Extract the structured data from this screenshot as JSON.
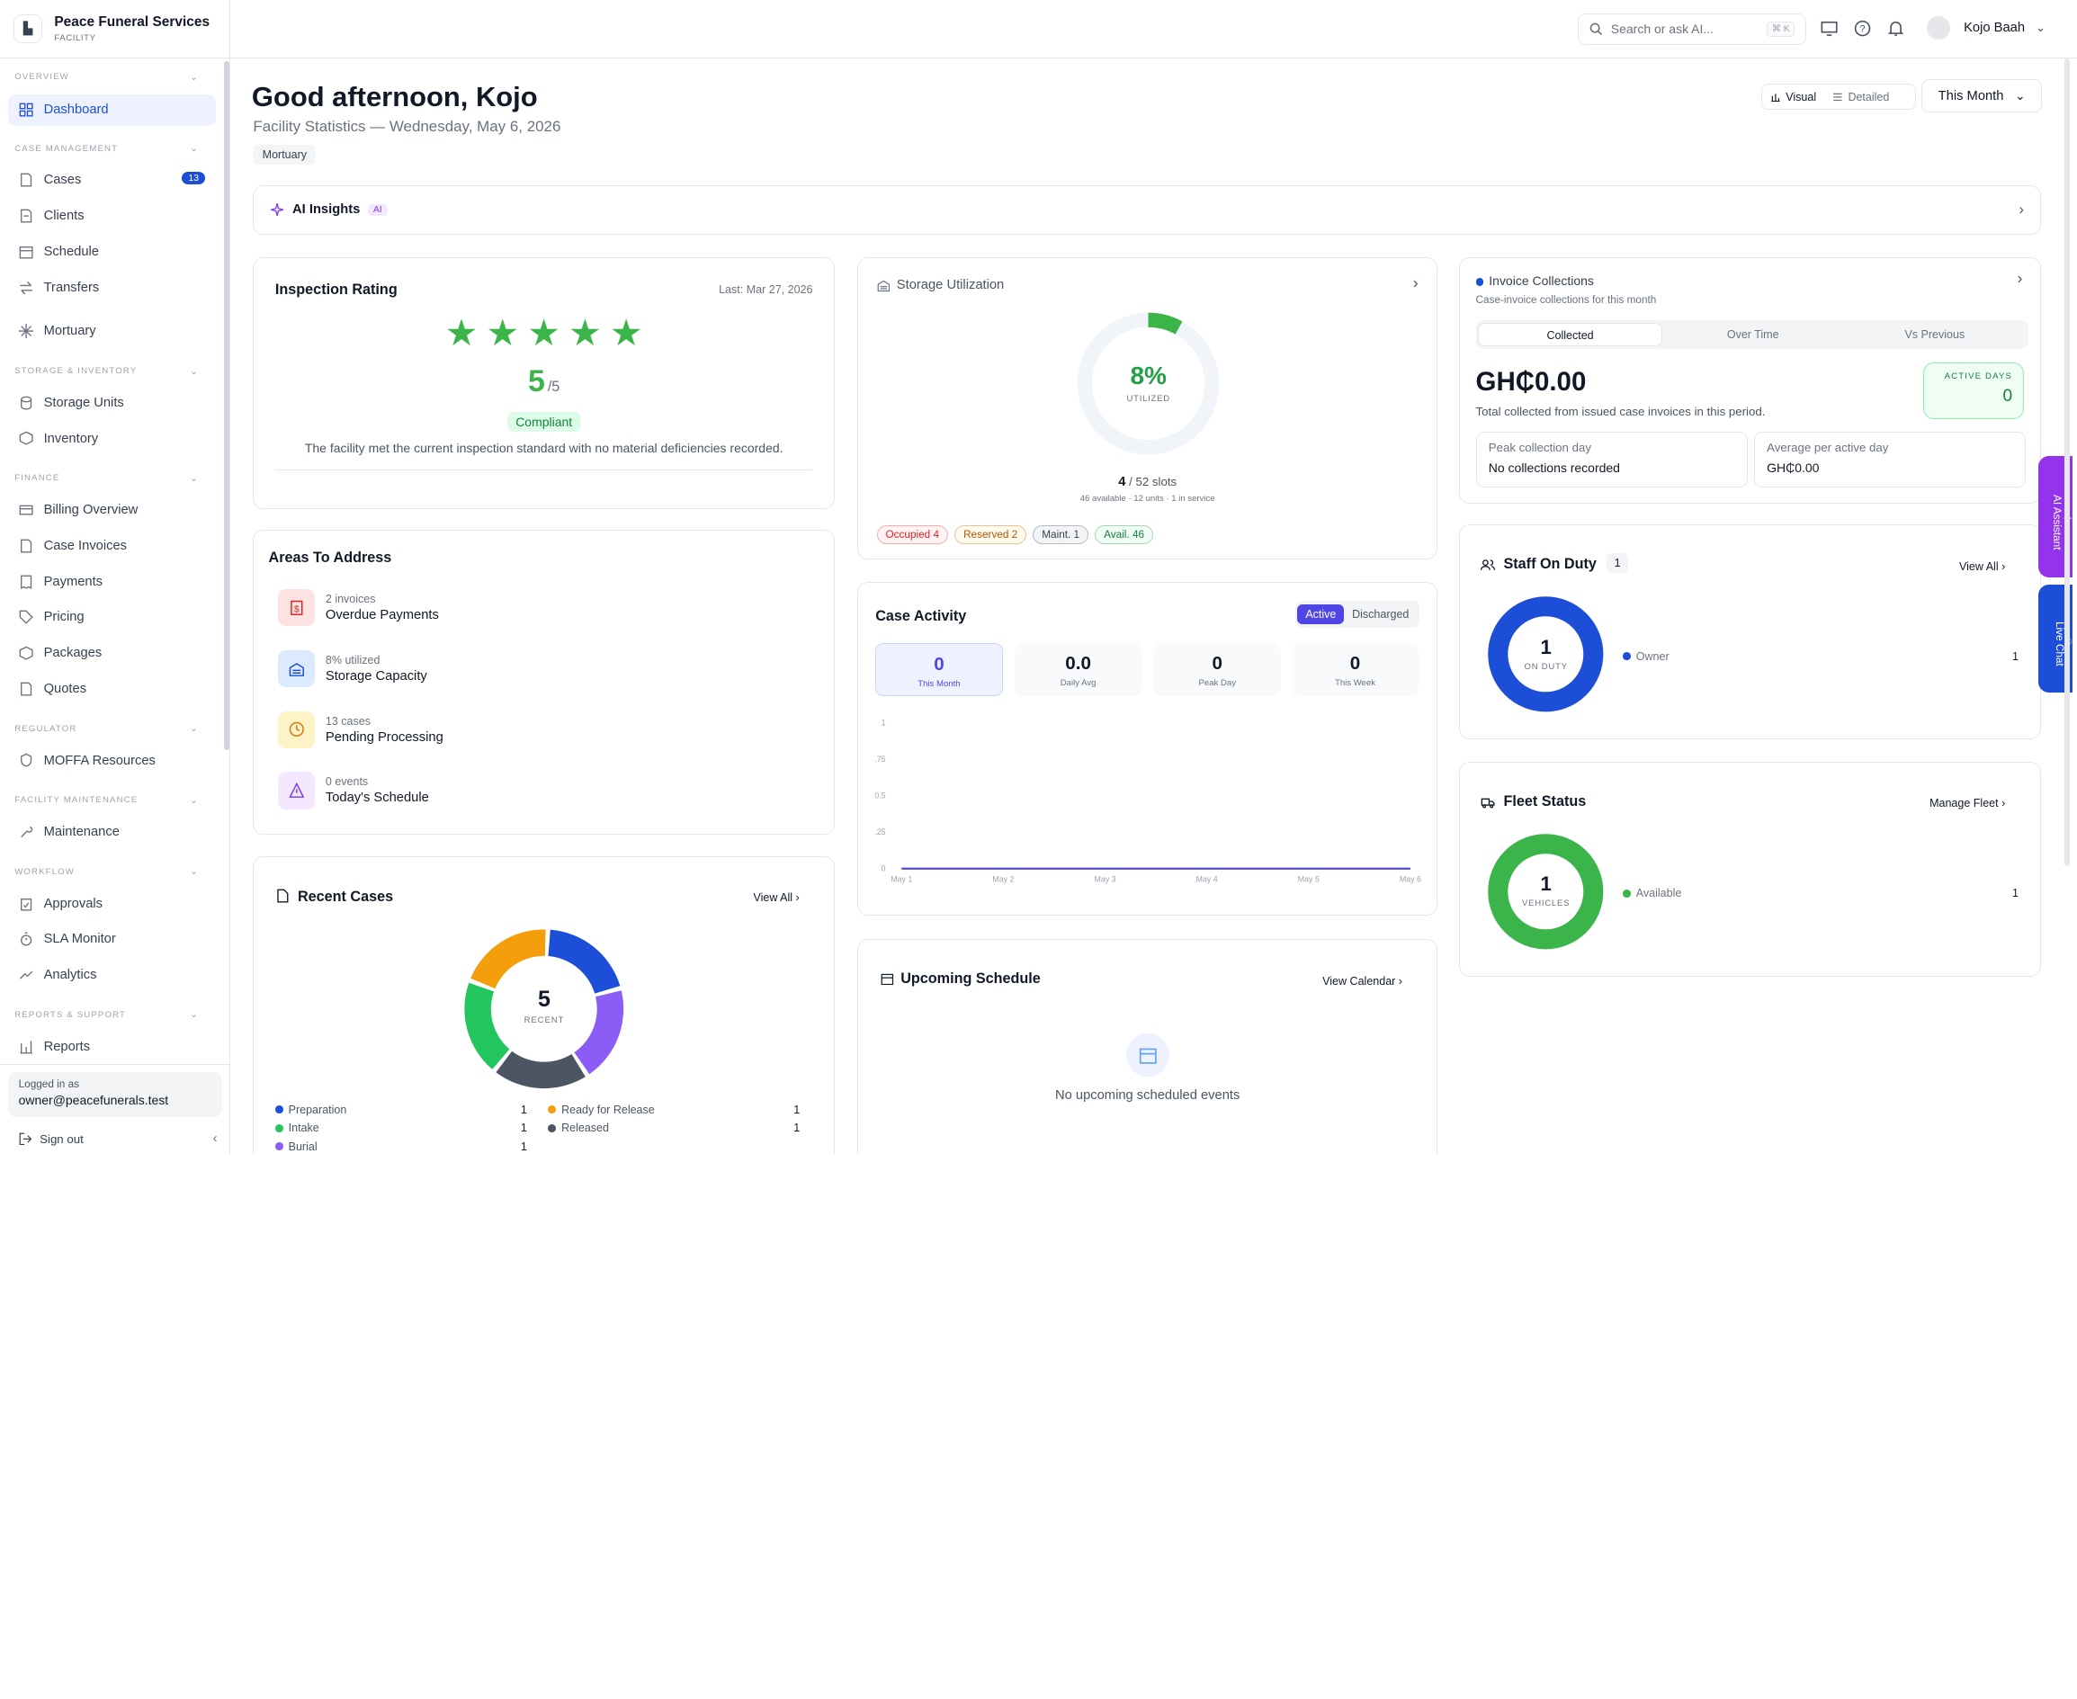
{
  "brand": {
    "name": "Peace Funeral Services",
    "sub": "FACILITY"
  },
  "nav": {
    "overview": "OVERVIEW",
    "dashboard": "Dashboard",
    "case_mgmt": "CASE MANAGEMENT",
    "cases": "Cases",
    "cases_badge": "13",
    "clients": "Clients",
    "schedule": "Schedule",
    "transfers": "Transfers",
    "mortuary": "Mortuary",
    "storage_inv": "STORAGE & INVENTORY",
    "storage_units": "Storage Units",
    "inventory": "Inventory",
    "finance": "FINANCE",
    "billing": "Billing Overview",
    "case_invoices": "Case Invoices",
    "payments": "Payments",
    "pricing": "Pricing",
    "packages": "Packages",
    "quotes": "Quotes",
    "regulator": "REGULATOR",
    "moffa": "MOFFA Resources",
    "facility_maint": "FACILITY MAINTENANCE",
    "maintenance": "Maintenance",
    "workflow": "WORKFLOW",
    "approvals": "Approvals",
    "sla": "SLA Monitor",
    "analytics": "Analytics",
    "reports_support": "REPORTS & SUPPORT",
    "reports": "Reports"
  },
  "account": {
    "logged_in_label": "Logged in as",
    "email": "owner@peacefunerals.test",
    "sign_out": "Sign out"
  },
  "topbar": {
    "search_placeholder": "Search or ask AI...",
    "shortcut": "⌘ K",
    "user_name": "Kojo Baah"
  },
  "header": {
    "greeting": "Good afternoon, Kojo",
    "subtitle": "Facility Statistics — Wednesday, May 6, 2026",
    "tag": "Mortuary",
    "view_visual": "Visual",
    "view_detailed": "Detailed",
    "period": "This Month"
  },
  "ai_insights": {
    "title": "AI Insights",
    "pill": "AI"
  },
  "inspection": {
    "title": "Inspection Rating",
    "last": "Last: Mar 27, 2026",
    "stars": 5,
    "score": "5",
    "out_of": "/5",
    "status": "Compliant",
    "note": "The facility met the current inspection standard with no material deficiencies recorded."
  },
  "areas": {
    "title": "Areas To Address",
    "items": [
      {
        "sub": "2 invoices",
        "title": "Overdue Payments"
      },
      {
        "sub": "8% utilized",
        "title": "Storage Capacity"
      },
      {
        "sub": "13 cases",
        "title": "Pending Processing"
      },
      {
        "sub": "0 events",
        "title": "Today's Schedule"
      }
    ]
  },
  "recent_cases": {
    "title": "Recent Cases",
    "view_all": "View All",
    "total": "5",
    "total_label": "RECENT",
    "legend": [
      {
        "name": "Preparation",
        "count": "1",
        "color": "#1d4ed8"
      },
      {
        "name": "Ready for Release",
        "count": "1",
        "color": "#f59e0b"
      },
      {
        "name": "Intake",
        "count": "1",
        "color": "#22c55e"
      },
      {
        "name": "Released",
        "count": "1",
        "color": "#4b5563"
      },
      {
        "name": "Burial",
        "count": "1",
        "color": "#8b5cf6"
      }
    ]
  },
  "storage": {
    "title": "Storage Utilization",
    "percent": "8%",
    "percent_label": "UTILIZED",
    "utilization": 0.08,
    "slots_used": "4",
    "slots_text": "/ 52 slots",
    "detail": "46 available · 12 units · 1 in service",
    "pills": [
      {
        "label": "Occupied 4",
        "color": "#dc2626",
        "bg": "#fef2f2"
      },
      {
        "label": "Reserved 2",
        "color": "#b45309",
        "bg": "#fffbeb"
      },
      {
        "label": "Maint. 1",
        "color": "#374151",
        "bg": "#f3f4f6"
      },
      {
        "label": "Avail. 46",
        "color": "#15803d",
        "bg": "#f0fdf4"
      }
    ]
  },
  "case_activity": {
    "title": "Case Activity",
    "tab_active": "Active",
    "tab_discharged": "Discharged",
    "stats": [
      {
        "value": "0",
        "label": "This Month"
      },
      {
        "value": "0.0",
        "label": "Daily Avg"
      },
      {
        "value": "0",
        "label": "Peak Day"
      },
      {
        "value": "0",
        "label": "This Week"
      }
    ]
  },
  "chart_data": {
    "type": "line",
    "x": [
      "May 1",
      "May 2",
      "May 3",
      "May 4",
      "May 5",
      "May 6"
    ],
    "series": [
      {
        "values": [
          0,
          0,
          0,
          0,
          0,
          0
        ]
      }
    ],
    "yticks": [
      "1",
      ".75",
      "0.5",
      ".25",
      "0"
    ],
    "ylim": [
      0,
      1
    ]
  },
  "schedule": {
    "title": "Upcoming Schedule",
    "link": "View Calendar",
    "empty": "No upcoming scheduled events"
  },
  "invoices": {
    "title": "Invoice Collections",
    "subtitle": "Case-invoice collections for this month",
    "tabs": [
      "Collected",
      "Over Time",
      "Vs Previous"
    ],
    "amount": "GH₵0.00",
    "desc": "Total collected from issued case invoices in this period.",
    "active_days_label": "ACTIVE DAYS",
    "active_days": "0",
    "peak_label": "Peak collection day",
    "peak_value": "No collections recorded",
    "avg_label": "Average per active day",
    "avg_value": "GH₵0.00"
  },
  "staff": {
    "title": "Staff On Duty",
    "count": "1",
    "view_all": "View All",
    "center_value": "1",
    "center_label": "ON DUTY",
    "legend": "Owner",
    "legend_value": "1"
  },
  "fleet": {
    "title": "Fleet Status",
    "link": "Manage Fleet",
    "center_value": "1",
    "center_label": "VEHICLES",
    "legend": "Available",
    "legend_value": "1"
  },
  "side_tabs": {
    "assistant": "AI Assistant",
    "chat": "Live Chat"
  }
}
